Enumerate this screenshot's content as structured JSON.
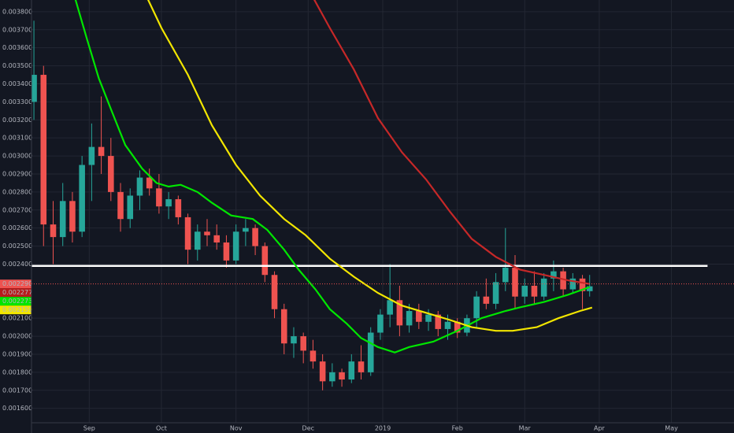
{
  "chart_data": {
    "type": "candlestick",
    "xlim": [
      -24,
      268
    ],
    "ylim": [
      0.00152,
      0.003865
    ],
    "grid": true,
    "up_color": "#26a69a",
    "down_color": "#ef5350",
    "xticks": [
      {
        "value": 0,
        "label": "Sep"
      },
      {
        "value": 30,
        "label": "Oct"
      },
      {
        "value": 61,
        "label": "Nov"
      },
      {
        "value": 91,
        "label": "Dec"
      },
      {
        "value": 122,
        "label": "2019"
      },
      {
        "value": 153,
        "label": "Feb"
      },
      {
        "value": 181,
        "label": "Mar"
      },
      {
        "value": 212,
        "label": "Apr"
      },
      {
        "value": 242,
        "label": "May"
      }
    ],
    "yticks": [
      {
        "value": 0.0016,
        "label": "0.001600"
      },
      {
        "value": 0.0017,
        "label": "0.001700"
      },
      {
        "value": 0.0018,
        "label": "0.001800"
      },
      {
        "value": 0.0019,
        "label": "0.001900"
      },
      {
        "value": 0.002,
        "label": "0.002000"
      },
      {
        "value": 0.0021,
        "label": "0.002100"
      },
      {
        "value": 0.0024,
        "label": "0.002400"
      },
      {
        "value": 0.0025,
        "label": "0.002500"
      },
      {
        "value": 0.0026,
        "label": "0.002600"
      },
      {
        "value": 0.0027,
        "label": "0.002700"
      },
      {
        "value": 0.0028,
        "label": "0.002800"
      },
      {
        "value": 0.0029,
        "label": "0.002900"
      },
      {
        "value": 0.003,
        "label": "0.003000"
      },
      {
        "value": 0.0031,
        "label": "0.003100"
      },
      {
        "value": 0.0032,
        "label": "0.003200"
      },
      {
        "value": 0.0033,
        "label": "0.003300"
      },
      {
        "value": 0.0034,
        "label": "0.003400"
      },
      {
        "value": 0.0035,
        "label": "0.003500"
      },
      {
        "value": 0.0036,
        "label": "0.003600"
      },
      {
        "value": 0.0037,
        "label": "0.003700"
      },
      {
        "value": 0.0038,
        "label": "0.003800"
      }
    ],
    "x": [
      -23,
      -19,
      -15,
      -11,
      -7,
      -3,
      1,
      5,
      9,
      13,
      17,
      21,
      25,
      29,
      33,
      37,
      41,
      45,
      49,
      53,
      57,
      61,
      65,
      69,
      73,
      77,
      81,
      85,
      89,
      93,
      97,
      101,
      105,
      109,
      113,
      117,
      121,
      125,
      129,
      133,
      137,
      141,
      145,
      149,
      153,
      157,
      161,
      165,
      169,
      173,
      177,
      181,
      185,
      189,
      193,
      197,
      201,
      205,
      208
    ],
    "open": [
      0.0033,
      0.00345,
      0.00262,
      0.00255,
      0.00275,
      0.00258,
      0.00295,
      0.00305,
      0.003,
      0.0028,
      0.00265,
      0.00278,
      0.00288,
      0.00282,
      0.00272,
      0.00276,
      0.00266,
      0.00248,
      0.00258,
      0.00256,
      0.00252,
      0.00242,
      0.00258,
      0.0026,
      0.0025,
      0.00234,
      0.00215,
      0.00196,
      0.002,
      0.00192,
      0.00186,
      0.00175,
      0.0018,
      0.00176,
      0.00186,
      0.0018,
      0.00202,
      0.00212,
      0.0022,
      0.00206,
      0.00214,
      0.00208,
      0.00212,
      0.00204,
      0.00208,
      0.00202,
      0.0021,
      0.00222,
      0.00218,
      0.0023,
      0.00238,
      0.00222,
      0.00228,
      0.00222,
      0.00232,
      0.00236,
      0.00226,
      0.00232,
      0.00225
    ],
    "high": [
      0.00375,
      0.0035,
      0.00275,
      0.00285,
      0.0028,
      0.003,
      0.00318,
      0.00333,
      0.0031,
      0.00285,
      0.00282,
      0.00292,
      0.00293,
      0.0029,
      0.0028,
      0.00278,
      0.00268,
      0.00262,
      0.00265,
      0.00262,
      0.00256,
      0.00262,
      0.00265,
      0.00262,
      0.00252,
      0.00236,
      0.00218,
      0.00205,
      0.00202,
      0.00198,
      0.0019,
      0.00185,
      0.00182,
      0.0019,
      0.00195,
      0.00205,
      0.00215,
      0.0024,
      0.00228,
      0.00218,
      0.00218,
      0.00215,
      0.00214,
      0.00212,
      0.0021,
      0.00212,
      0.00225,
      0.00232,
      0.00235,
      0.0026,
      0.00245,
      0.00232,
      0.00236,
      0.00235,
      0.00242,
      0.00238,
      0.00235,
      0.00234,
      0.00234
    ],
    "low": [
      0.0032,
      0.0025,
      0.0024,
      0.0025,
      0.00252,
      0.00255,
      0.00275,
      0.0029,
      0.00275,
      0.00258,
      0.0026,
      0.0027,
      0.00278,
      0.00268,
      0.00265,
      0.00262,
      0.0024,
      0.00242,
      0.0025,
      0.00248,
      0.00238,
      0.0024,
      0.0025,
      0.00245,
      0.0023,
      0.0021,
      0.0019,
      0.00188,
      0.00185,
      0.00182,
      0.0017,
      0.00172,
      0.00172,
      0.00174,
      0.00176,
      0.00178,
      0.00198,
      0.00205,
      0.002,
      0.00202,
      0.00204,
      0.00203,
      0.002,
      0.00198,
      0.00199,
      0.002,
      0.00205,
      0.00215,
      0.00215,
      0.00225,
      0.00215,
      0.00218,
      0.00218,
      0.0022,
      0.00225,
      0.00222,
      0.00224,
      0.00215,
      0.00222
    ],
    "close": [
      0.00345,
      0.00262,
      0.00255,
      0.00275,
      0.00258,
      0.00295,
      0.00305,
      0.003,
      0.0028,
      0.00265,
      0.00278,
      0.00288,
      0.00282,
      0.00272,
      0.00276,
      0.00266,
      0.00248,
      0.00258,
      0.00256,
      0.00252,
      0.00242,
      0.00258,
      0.0026,
      0.0025,
      0.00234,
      0.00215,
      0.00196,
      0.002,
      0.00192,
      0.00186,
      0.00175,
      0.0018,
      0.00176,
      0.00186,
      0.0018,
      0.00202,
      0.00212,
      0.0022,
      0.00206,
      0.00214,
      0.00208,
      0.00212,
      0.00204,
      0.00208,
      0.00202,
      0.0021,
      0.00222,
      0.00218,
      0.0023,
      0.00238,
      0.00222,
      0.00228,
      0.00222,
      0.00232,
      0.00236,
      0.00226,
      0.00232,
      0.00225,
      0.002277
    ],
    "series": [
      {
        "color": "#00e600",
        "x": [
          -6,
          -1,
          4,
          9,
          15,
          22,
          28,
          33,
          38,
          45,
          51,
          59,
          68,
          74,
          81,
          87,
          94,
          100,
          107,
          113,
          120,
          127,
          133,
          143,
          153,
          163,
          173,
          179,
          189,
          199,
          208
        ],
        "values": [
          0.00388,
          0.00365,
          0.00343,
          0.00326,
          0.00306,
          0.00293,
          0.00285,
          0.00283,
          0.00284,
          0.0028,
          0.00274,
          0.00267,
          0.00265,
          0.00259,
          0.00248,
          0.00237,
          0.00226,
          0.00215,
          0.00207,
          0.00199,
          0.00194,
          0.00191,
          0.00194,
          0.00197,
          0.00203,
          0.0021,
          0.00214,
          0.00216,
          0.00219,
          0.00223,
          0.002273
        ]
      },
      {
        "color": "#f2e600",
        "x": [
          24,
          30,
          41,
          51,
          61,
          71,
          81,
          90,
          100,
          110,
          120,
          130,
          140,
          150,
          159,
          169,
          176,
          186,
          195,
          204,
          209
        ],
        "values": [
          0.00388,
          0.00371,
          0.00345,
          0.00317,
          0.00295,
          0.00278,
          0.00265,
          0.00256,
          0.00243,
          0.00233,
          0.00224,
          0.00217,
          0.00213,
          0.00209,
          0.00205,
          0.00203,
          0.00203,
          0.00205,
          0.0021,
          0.00214,
          0.002159
        ]
      },
      {
        "color": "#c62828",
        "x": [
          93,
          100,
          110,
          120,
          130,
          140,
          150,
          159,
          169,
          179,
          189,
          199,
          208
        ],
        "values": [
          0.00388,
          0.00371,
          0.00348,
          0.00321,
          0.00302,
          0.00287,
          0.00269,
          0.00254,
          0.00244,
          0.00237,
          0.00234,
          0.00231,
          0.00229
        ]
      }
    ],
    "level_line": {
      "value": 0.00239,
      "color": "#ffffff",
      "x": [
        -24,
        257
      ]
    },
    "price_line": {
      "value": 0.00229,
      "color": "#ef5350"
    },
    "price_labels": [
      {
        "value": 0.00229,
        "label": "0.002290",
        "color": "#ef5350"
      },
      {
        "value": 0.002277,
        "label": "0.002277",
        "color": "#b71c1c"
      },
      {
        "value": 0.002273,
        "label": "0.002273",
        "color": "#00e600"
      },
      {
        "value": 0.002159,
        "label": "0.002159",
        "color": "#f2e600"
      }
    ]
  }
}
